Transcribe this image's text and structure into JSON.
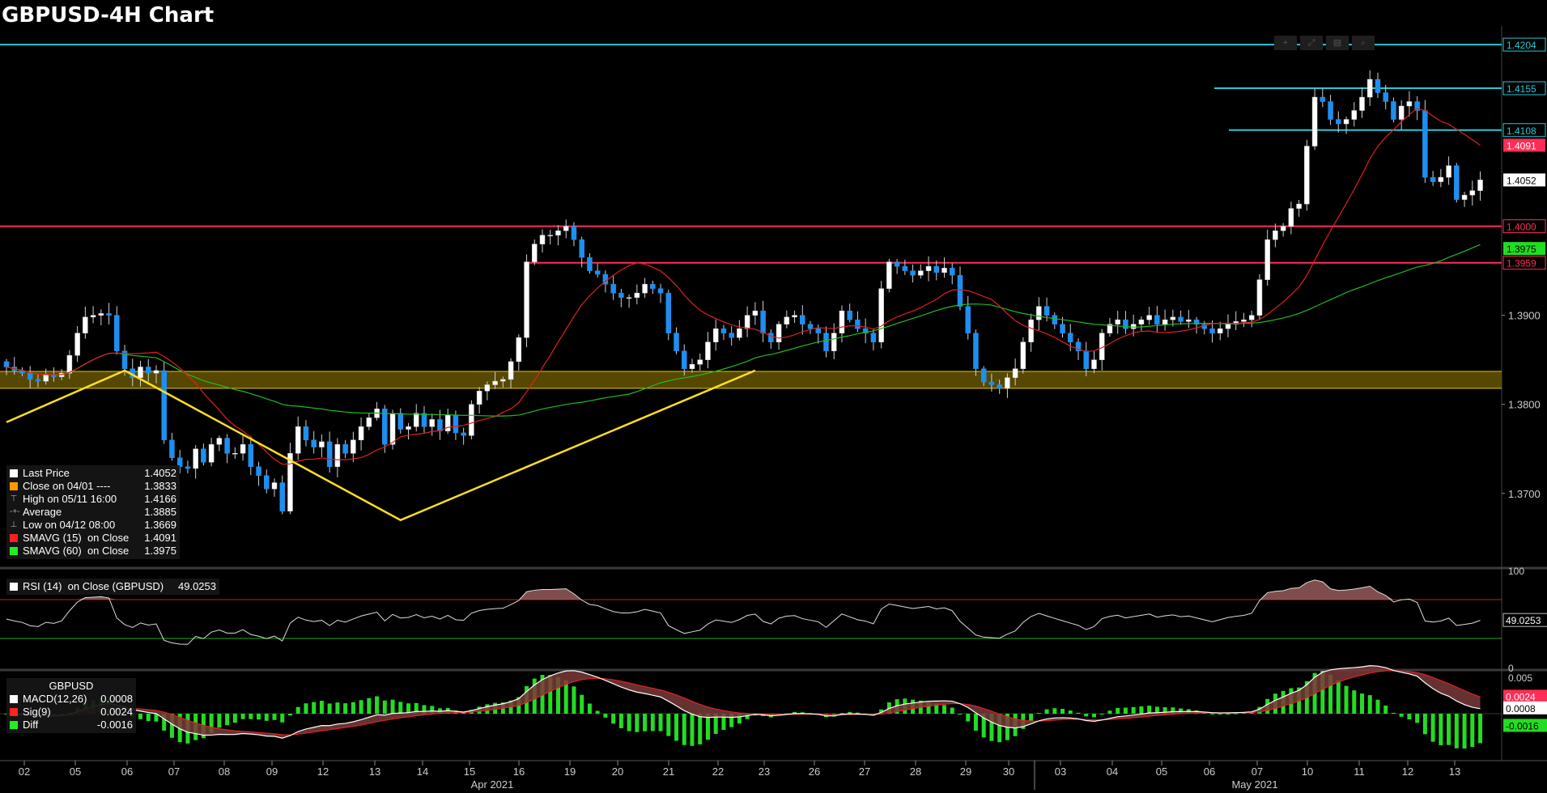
{
  "title": "GBPUSD-4H Chart",
  "toolbar": [
    "+",
    "⤢",
    "▤",
    "⌕"
  ],
  "chart_data": {
    "type": "candlestick",
    "x_tick_labels": [
      "02",
      "05",
      "06",
      "07",
      "08",
      "09",
      "12",
      "13",
      "14",
      "15",
      "16",
      "19",
      "20",
      "21",
      "22",
      "23",
      "26",
      "27",
      "28",
      "29",
      "30",
      "03",
      "04",
      "05",
      "06",
      "07",
      "10",
      "11",
      "12",
      "13"
    ],
    "month_labels": [
      "Apr 2021",
      "May 2021"
    ],
    "price_axis": {
      "ticks": [
        1.37,
        1.38,
        1.39
      ],
      "tick_labels": [
        "1.3700",
        "1.3800",
        "1.3900"
      ],
      "range": [
        1.3618,
        1.4225
      ]
    },
    "horizontal_lines": [
      {
        "value": 1.4204,
        "label": "1.4204",
        "color": "#27c8d6"
      },
      {
        "value": 1.4155,
        "label": "1.4155",
        "color": "#27c8d6"
      },
      {
        "value": 1.4108,
        "label": "1.4108",
        "color": "#27c8d6"
      },
      {
        "value": 1.4,
        "label": "1.4000",
        "color": "#ff2d55"
      },
      {
        "value": 1.3959,
        "label": "1.3959",
        "color": "#ff2d55"
      }
    ],
    "value_badges": [
      {
        "value": 1.4091,
        "label": "1.4091",
        "bg": "#ff2d55",
        "fg": "#ffffff"
      },
      {
        "value": 1.4052,
        "label": "1.4052",
        "bg": "#ffffff",
        "fg": "#000000"
      },
      {
        "value": 1.3975,
        "label": "1.3975",
        "bg": "#22dd22",
        "fg": "#000000"
      }
    ],
    "support_zone": [
      1.3818,
      1.3837
    ],
    "closes": [
      1.3842,
      1.3838,
      1.3835,
      1.3828,
      1.3826,
      1.3833,
      1.3831,
      1.3835,
      1.3855,
      1.388,
      1.3898,
      1.39,
      1.3902,
      1.39,
      1.386,
      1.384,
      1.383,
      1.3842,
      1.3835,
      1.3838,
      1.376,
      1.374,
      1.373,
      1.3728,
      1.375,
      1.3735,
      1.3755,
      1.3762,
      1.3745,
      1.3745,
      1.3755,
      1.373,
      1.372,
      1.3705,
      1.3712,
      1.368,
      1.3745,
      1.3775,
      1.376,
      1.3752,
      1.3758,
      1.373,
      1.3755,
      1.3745,
      1.376,
      1.3775,
      1.3785,
      1.3795,
      1.3755,
      1.379,
      1.3772,
      1.3775,
      1.379,
      1.3775,
      1.3783,
      1.377,
      1.3788,
      1.3768,
      1.3765,
      1.38,
      1.3815,
      1.3822,
      1.3826,
      1.3828,
      1.3848,
      1.3875,
      1.396,
      1.398,
      1.399,
      1.399,
      1.3995,
      1.4,
      1.3985,
      1.3965,
      1.395,
      1.3946,
      1.3935,
      1.3925,
      1.392,
      1.392,
      1.3925,
      1.3935,
      1.393,
      1.3925,
      1.388,
      1.386,
      1.384,
      1.3845,
      1.385,
      1.387,
      1.3885,
      1.388,
      1.3875,
      1.3885,
      1.39,
      1.3905,
      1.388,
      1.387,
      1.389,
      1.3898,
      1.39,
      1.389,
      1.3885,
      1.388,
      1.386,
      1.388,
      1.3905,
      1.3895,
      1.3885,
      1.388,
      1.387,
      1.393,
      1.396,
      1.3955,
      1.395,
      1.3945,
      1.395,
      1.3955,
      1.3948,
      1.3953,
      1.3945,
      1.391,
      1.388,
      1.384,
      1.3825,
      1.3822,
      1.3818,
      1.383,
      1.384,
      1.387,
      1.3895,
      1.391,
      1.39,
      1.389,
      1.388,
      1.387,
      1.386,
      1.384,
      1.385,
      1.388,
      1.389,
      1.3895,
      1.3885,
      1.389,
      1.3895,
      1.39,
      1.389,
      1.3895,
      1.3898,
      1.3893,
      1.3895,
      1.389,
      1.3885,
      1.388,
      1.3885,
      1.389,
      1.3893,
      1.3895,
      1.39,
      1.394,
      1.3985,
      1.3995,
      1.4,
      1.402,
      1.4025,
      1.409,
      1.4145,
      1.414,
      1.412,
      1.4115,
      1.412,
      1.413,
      1.4145,
      1.4165,
      1.415,
      1.414,
      1.412,
      1.4135,
      1.414,
      1.413,
      1.4055,
      1.405,
      1.4055,
      1.4068,
      1.403,
      1.4035,
      1.404,
      1.4052
    ],
    "sma15": {
      "name": "SMAVG (15)",
      "color": "#e02020"
    },
    "sma60": {
      "name": "SMAVG (60)",
      "color": "#22bb22"
    },
    "yellow_pattern": [
      {
        "x": 0,
        "y": 1.378
      },
      {
        "x": 15,
        "y": 1.3838
      },
      {
        "x": 50,
        "y": 1.367
      },
      {
        "x": 95,
        "y": 1.3838
      }
    ],
    "rsi": {
      "label": "RSI (14)  on Close (GBPUSD)",
      "value": "49.0253",
      "ticks": [
        {
          "v": 100,
          "t": "100"
        },
        {
          "v": 50,
          "t": "50"
        },
        {
          "v": 0,
          "t": "0"
        }
      ],
      "overbought": 70,
      "oversold": 30
    },
    "macd": {
      "title": "GBPUSD",
      "ticks": [
        {
          "v": 0.005,
          "t": "0.005"
        }
      ],
      "badges": [
        {
          "value": 0.0024,
          "label": "0.0024",
          "bg": "#ff2d55",
          "fg": "#ffffff"
        },
        {
          "value": 0.0008,
          "label": "0.0008",
          "bg": "#ffffff",
          "fg": "#000000"
        },
        {
          "value": -0.0016,
          "label": "-0.0016",
          "bg": "#22dd22",
          "fg": "#000000"
        }
      ]
    }
  },
  "legend": {
    "rows": [
      {
        "label": "Last Price",
        "value": "1.4052",
        "mark": "square",
        "color": "#ffffff"
      },
      {
        "label": "Close on 04/01 ----",
        "value": "1.3833",
        "mark": "square",
        "color": "#ff9900"
      },
      {
        "label": "High on 05/11 16:00",
        "value": "1.4166",
        "mark": "sym",
        "sym": "⊤"
      },
      {
        "label": "Average",
        "value": "1.3885",
        "mark": "sym",
        "sym": "-+-"
      },
      {
        "label": "Low on 04/12 08:00",
        "value": "1.3669",
        "mark": "sym",
        "sym": "⊥"
      },
      {
        "label": "SMAVG (15)  on Close",
        "value": "1.4091",
        "mark": "square",
        "color": "#ff2020"
      },
      {
        "label": "SMAVG (60)  on Close",
        "value": "1.3975",
        "mark": "square",
        "color": "#22ee22"
      }
    ]
  },
  "rsi_legend": {
    "label": "RSI (14)  on Close (GBPUSD)",
    "value": "49.0253",
    "color": "#ffffff"
  },
  "macd_legend": {
    "title": "GBPUSD",
    "rows": [
      {
        "label": "MACD(12,26)",
        "value": "0.0008",
        "color": "#ffffff"
      },
      {
        "label": "Sig(9)",
        "value": "0.0024",
        "color": "#ff2020"
      },
      {
        "label": "Diff",
        "value": "-0.0016",
        "color": "#22ee22"
      }
    ]
  }
}
